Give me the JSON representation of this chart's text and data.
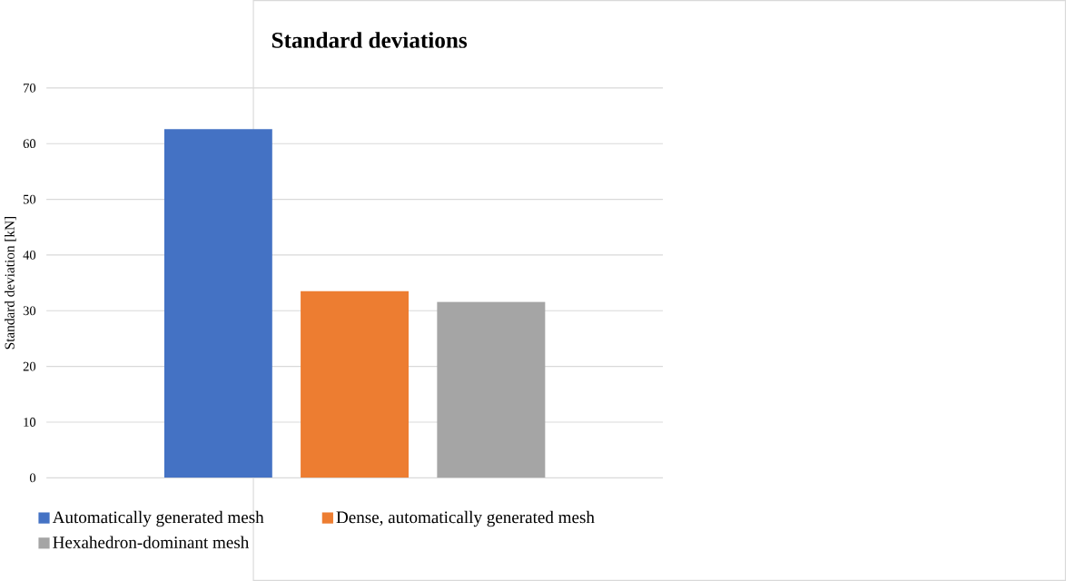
{
  "chart_data": {
    "type": "bar",
    "title": "Standard deviations",
    "ylabel": "Standard deviation [kN]",
    "categories": [
      null
    ],
    "series": [
      {
        "name": "Automatically generated mesh",
        "color": "#4472c4",
        "values": [
          62.6
        ]
      },
      {
        "name": "Dense, automatically generated mesh",
        "color": "#ed7d31",
        "values": [
          33.5
        ]
      },
      {
        "name": "Hexahedron-dominant mesh",
        "color": "#a5a5a5",
        "values": [
          31.6
        ]
      }
    ],
    "ylim": [
      0,
      70
    ],
    "yticks": [
      0,
      10,
      20,
      30,
      40,
      50,
      60,
      70
    ],
    "grid": "y",
    "legend": "bottom"
  }
}
